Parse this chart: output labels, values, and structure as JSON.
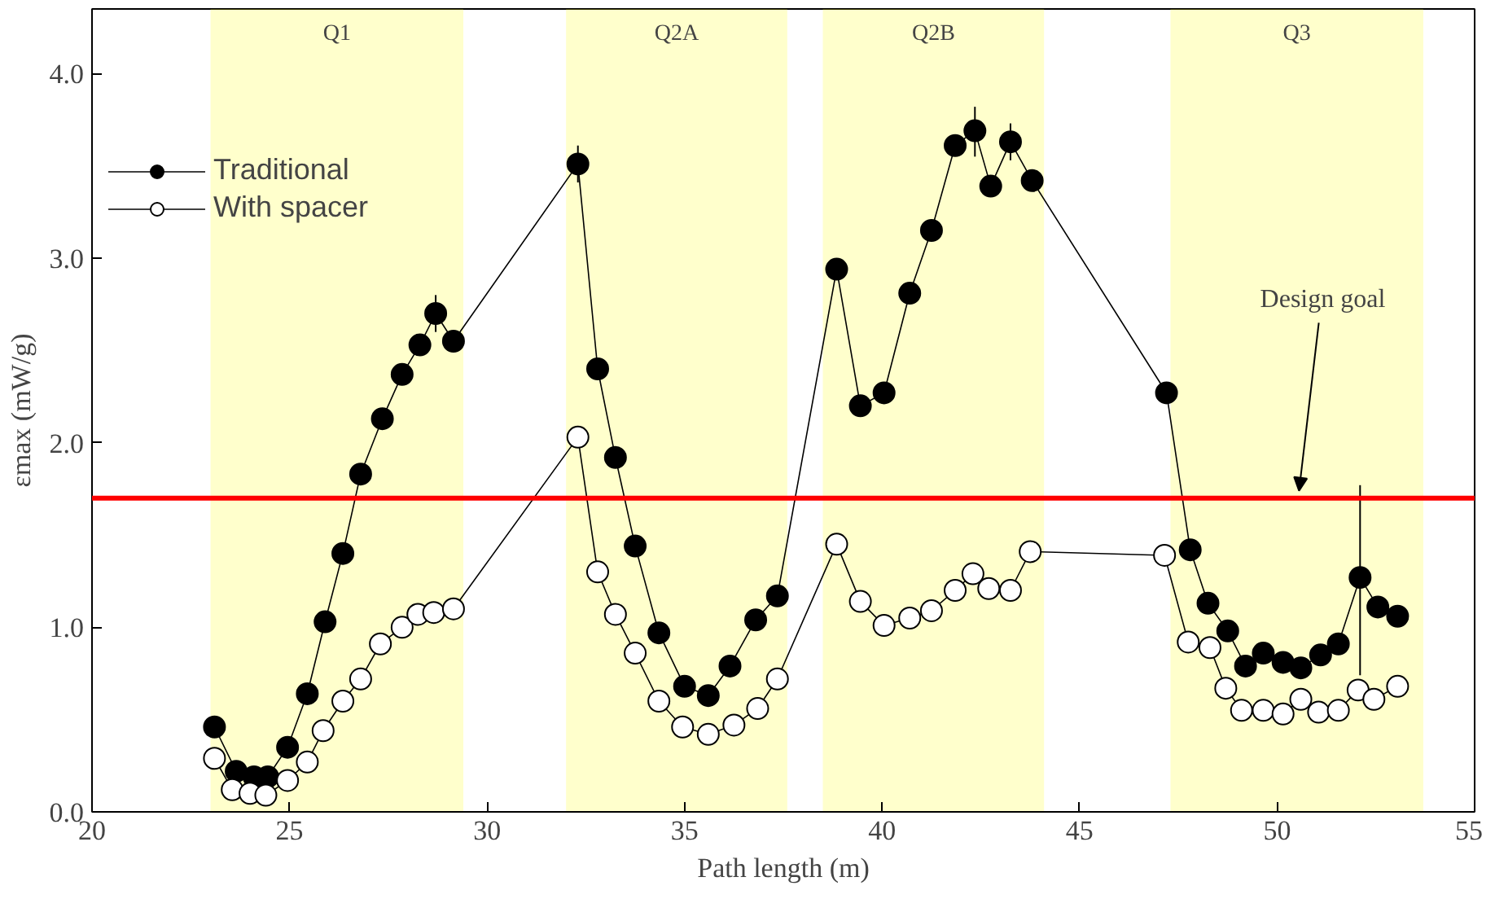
{
  "chart_data": {
    "type": "line",
    "xlabel": "Path length (m)",
    "ylabel": "εmax (mW/g)",
    "xlim": [
      20,
      55
    ],
    "ylim": [
      0,
      4.35
    ],
    "xticks": [
      20,
      25,
      30,
      35,
      40,
      45,
      50,
      55
    ],
    "yticks": [
      {
        "value": 0,
        "label": "0.0"
      },
      {
        "value": 1,
        "label": "1.0"
      },
      {
        "value": 2,
        "label": "2.0"
      },
      {
        "value": 3,
        "label": "3.0"
      },
      {
        "value": 4,
        "label": "4.0"
      }
    ],
    "grid": false,
    "legend": "top left",
    "line_style": "solid",
    "series": [
      {
        "name": "Traditional",
        "color": "#000000",
        "marker": "circle",
        "x": [
          23.1,
          23.65,
          24.1,
          24.45,
          24.95,
          25.45,
          25.9,
          26.35,
          26.8,
          27.35,
          27.85,
          28.3,
          28.7,
          29.15,
          32.3,
          32.8,
          33.25,
          33.75,
          34.35,
          35.0,
          35.6,
          36.15,
          36.8,
          37.35,
          38.85,
          39.45,
          40.05,
          40.7,
          41.25,
          41.85,
          42.35,
          42.75,
          43.25,
          43.8,
          47.2,
          47.8,
          48.25,
          48.75,
          49.2,
          49.65,
          50.15,
          50.6,
          51.1,
          51.55,
          52.1,
          52.55,
          53.05
        ],
        "values": [
          0.46,
          0.22,
          0.19,
          0.19,
          0.35,
          0.64,
          1.03,
          1.4,
          1.83,
          2.13,
          2.37,
          2.53,
          2.7,
          2.55,
          3.51,
          2.4,
          1.92,
          1.44,
          0.97,
          0.68,
          0.63,
          0.79,
          1.04,
          1.17,
          2.94,
          2.2,
          2.27,
          2.81,
          3.15,
          3.61,
          3.69,
          3.39,
          3.63,
          3.42,
          2.27,
          1.42,
          1.13,
          0.98,
          0.79,
          0.86,
          0.81,
          0.78,
          0.85,
          0.91,
          1.27,
          1.11,
          1.06
        ],
        "errors": [
          null,
          null,
          null,
          null,
          null,
          null,
          null,
          null,
          null,
          null,
          null,
          null,
          0.1,
          null,
          0.1,
          null,
          null,
          null,
          null,
          null,
          null,
          null,
          null,
          null,
          null,
          null,
          null,
          null,
          null,
          null,
          [
            3.55,
            3.82
          ],
          null,
          0.1,
          null,
          null,
          null,
          null,
          null,
          null,
          null,
          null,
          null,
          null,
          null,
          [
            0.74,
            1.77
          ],
          null,
          null
        ]
      },
      {
        "name": "With spacer",
        "color": "#000000",
        "marker": "circle_open",
        "x": [
          23.1,
          23.55,
          24.0,
          24.4,
          24.95,
          25.45,
          25.85,
          26.35,
          26.8,
          27.3,
          27.85,
          28.25,
          28.65,
          29.15,
          32.3,
          32.8,
          33.25,
          33.75,
          34.35,
          34.95,
          35.6,
          36.25,
          36.85,
          37.35,
          38.85,
          39.45,
          40.05,
          40.7,
          41.25,
          41.85,
          42.3,
          42.7,
          43.25,
          43.75,
          47.15,
          47.75,
          48.3,
          48.7,
          49.1,
          49.65,
          50.15,
          50.6,
          51.05,
          51.55,
          52.05,
          52.45,
          53.05
        ],
        "values": [
          0.29,
          0.12,
          0.1,
          0.09,
          0.17,
          0.27,
          0.44,
          0.6,
          0.72,
          0.91,
          1.0,
          1.07,
          1.08,
          1.1,
          2.03,
          1.3,
          1.07,
          0.86,
          0.6,
          0.46,
          0.42,
          0.47,
          0.56,
          0.72,
          1.45,
          1.14,
          1.01,
          1.05,
          1.09,
          1.2,
          1.29,
          1.21,
          1.2,
          1.41,
          1.39,
          0.92,
          0.89,
          0.67,
          0.55,
          0.55,
          0.53,
          0.61,
          0.54,
          0.55,
          0.66,
          0.61,
          0.68
        ]
      }
    ],
    "ref_lines": [
      {
        "axis": "y",
        "value": 1.7,
        "color": "#ff0000",
        "line_style": "solid",
        "label": "Design goal"
      }
    ],
    "bands": [
      {
        "axis": "x",
        "from": 23.0,
        "to": 29.4,
        "label": "Q1",
        "color": "#ffff00"
      },
      {
        "axis": "x",
        "from": 32.0,
        "to": 37.6,
        "label": "Q2A",
        "color": "#ffff00"
      },
      {
        "axis": "x",
        "from": 38.5,
        "to": 44.1,
        "label": "Q2B",
        "color": "#ffff00"
      },
      {
        "axis": "x",
        "from": 47.3,
        "to": 53.7,
        "label": "Q3",
        "color": "#ffff00"
      }
    ]
  }
}
